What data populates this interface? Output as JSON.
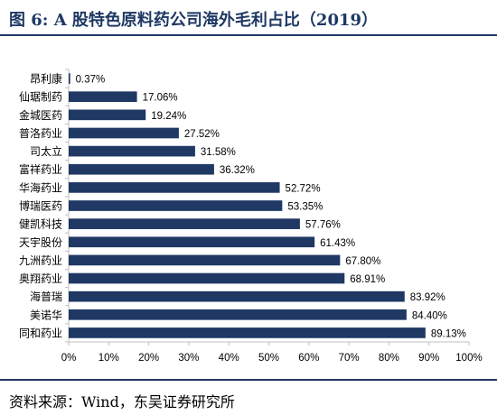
{
  "figure": {
    "title": "图 6:  A 股特色原料药公司海外毛利占比（2019）",
    "source": "资料来源：Wind，东吴证券研究所"
  },
  "colors": {
    "bar": "#1f3864",
    "title": "#1f3864",
    "axis": "#bfbfbf",
    "text": "#000000"
  },
  "chart_data": {
    "type": "bar",
    "orientation": "horizontal",
    "categories": [
      "昂利康",
      "仙琚制药",
      "金城医药",
      "普洛药业",
      "司太立",
      "富祥药业",
      "华海药业",
      "博瑞医药",
      "健凯科技",
      "天宇股份",
      "九洲药业",
      "奥翔药业",
      "海普瑞",
      "美诺华",
      "同和药业"
    ],
    "values": [
      0.37,
      17.06,
      19.24,
      27.52,
      31.58,
      36.32,
      52.72,
      53.35,
      57.76,
      61.43,
      67.8,
      68.91,
      83.92,
      84.4,
      89.13
    ],
    "value_labels": [
      "0.37%",
      "17.06%",
      "19.24%",
      "27.52%",
      "31.58%",
      "36.32%",
      "52.72%",
      "53.35%",
      "57.76%",
      "61.43%",
      "67.80%",
      "68.91%",
      "83.92%",
      "84.40%",
      "89.13%"
    ],
    "xlim": [
      0,
      100
    ],
    "xticks": [
      0,
      10,
      20,
      30,
      40,
      50,
      60,
      70,
      80,
      90,
      100
    ],
    "xtick_labels": [
      "0%",
      "10%",
      "20%",
      "30%",
      "40%",
      "50%",
      "60%",
      "70%",
      "80%",
      "90%",
      "100%"
    ],
    "grid": false,
    "legend": "none",
    "title": "",
    "xlabel": "",
    "ylabel": ""
  }
}
